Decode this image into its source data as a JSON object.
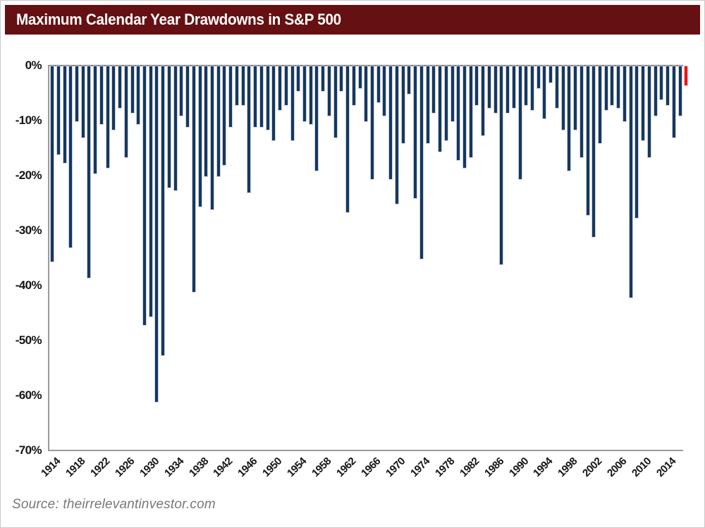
{
  "header": {
    "bg": "#651012"
  },
  "source": {
    "text": "Source: theirrelevantinvestor.com"
  },
  "chart_data": {
    "type": "bar",
    "title": "Maximum Calendar Year Drawdowns in S&P 500",
    "xlabel": "",
    "ylabel": "",
    "ylim": [
      -70,
      0
    ],
    "grid": false,
    "legend": "none",
    "bar_color": "#17375e",
    "bar_outline": "#c7d1df",
    "highlight_year": 2017,
    "highlight_color": "#ee1313",
    "highlight_outline": "#f5c3c3",
    "y_tick_labels": [
      "0%",
      "-10%",
      "-20%",
      "-30%",
      "-40%",
      "-50%",
      "-60%",
      "-70%"
    ],
    "x_tick_labels": [
      "1914",
      "1918",
      "1922",
      "1926",
      "1930",
      "1934",
      "1938",
      "1942",
      "1946",
      "1950",
      "1954",
      "1958",
      "1962",
      "1966",
      "1970",
      "1974",
      "1978",
      "1982",
      "1986",
      "1990",
      "1994",
      "1998",
      "2002",
      "2006",
      "2010",
      "2014"
    ],
    "years": [
      1914,
      1915,
      1916,
      1917,
      1918,
      1919,
      1920,
      1921,
      1922,
      1923,
      1924,
      1925,
      1926,
      1927,
      1928,
      1929,
      1930,
      1931,
      1932,
      1933,
      1934,
      1935,
      1936,
      1937,
      1938,
      1939,
      1940,
      1941,
      1942,
      1943,
      1944,
      1945,
      1946,
      1947,
      1948,
      1949,
      1950,
      1951,
      1952,
      1953,
      1954,
      1955,
      1956,
      1957,
      1958,
      1959,
      1960,
      1961,
      1962,
      1963,
      1964,
      1965,
      1966,
      1967,
      1968,
      1969,
      1970,
      1971,
      1972,
      1973,
      1974,
      1975,
      1976,
      1977,
      1978,
      1979,
      1980,
      1981,
      1982,
      1983,
      1984,
      1985,
      1986,
      1987,
      1988,
      1989,
      1990,
      1991,
      1992,
      1993,
      1994,
      1995,
      1996,
      1997,
      1998,
      1999,
      2000,
      2001,
      2002,
      2003,
      2004,
      2005,
      2006,
      2007,
      2008,
      2009,
      2010,
      2011,
      2012,
      2013,
      2014,
      2015,
      2016,
      2017
    ],
    "values": [
      -35.5,
      -16,
      -17.5,
      -33,
      -10,
      -13,
      -38.5,
      -19.5,
      -10.5,
      -18.5,
      -11.5,
      -7.5,
      -16.5,
      -8.5,
      -10.5,
      -47,
      -45.5,
      -61,
      -52.5,
      -22,
      -22.5,
      -9,
      -11,
      -41,
      -25.5,
      -20,
      -26,
      -20,
      -18,
      -11,
      -7,
      -7,
      -23,
      -11,
      -11,
      -11.5,
      -13.5,
      -8,
      -7,
      -13.5,
      -4.5,
      -10,
      -10.5,
      -19,
      -4.5,
      -9,
      -13,
      -4.5,
      -26.5,
      -7,
      -4,
      -10,
      -20.5,
      -6.5,
      -9,
      -20.5,
      -25,
      -14,
      -5,
      -24,
      -35,
      -14,
      -8.5,
      -15.5,
      -13.5,
      -10,
      -17,
      -18.5,
      -16.5,
      -7,
      -12.5,
      -7.5,
      -8.5,
      -36,
      -8.5,
      -7.5,
      -20.5,
      -7,
      -8,
      -4,
      -9.5,
      -3,
      -7.5,
      -11.5,
      -19,
      -11.5,
      -16.5,
      -27,
      -31,
      -14,
      -8,
      -7,
      -7.5,
      -10,
      -42,
      -27.5,
      -13.5,
      -16.5,
      -9,
      -6,
      -7,
      -13,
      -9,
      -3.5
    ]
  }
}
